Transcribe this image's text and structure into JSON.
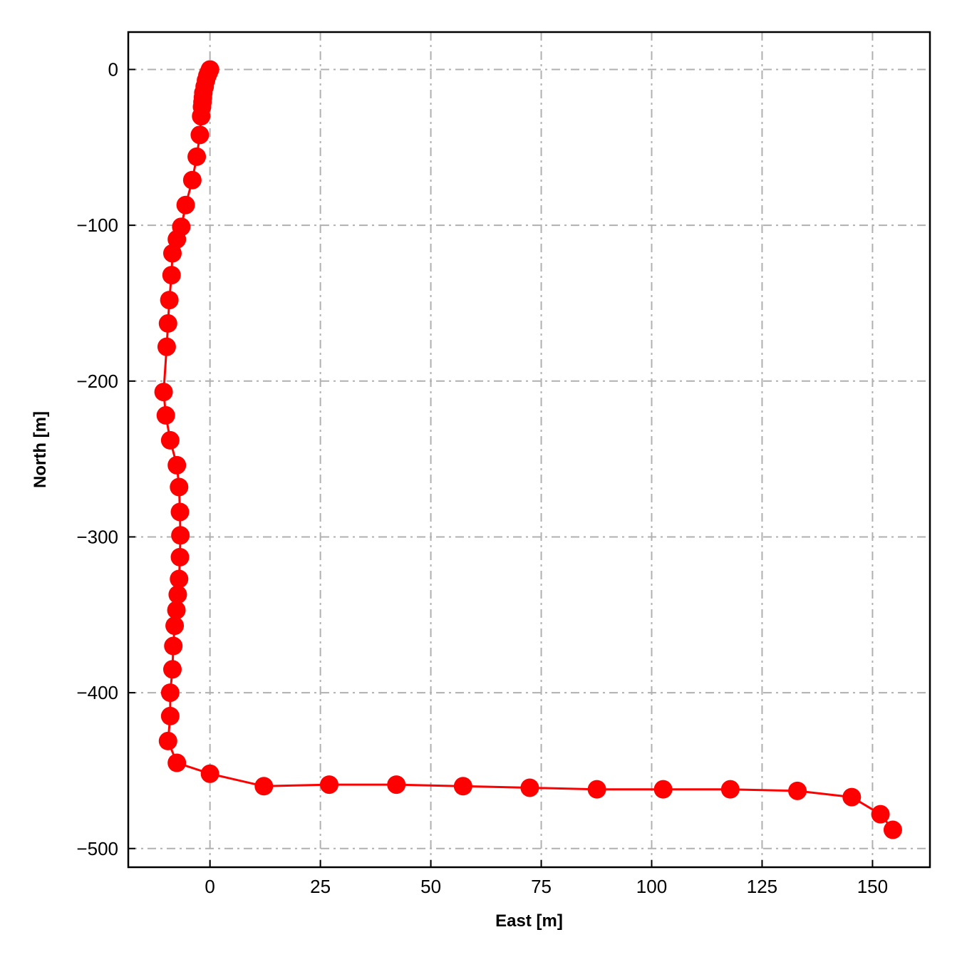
{
  "chart_data": {
    "type": "line",
    "title": "",
    "xlabel": "East [m]",
    "ylabel": "North [m]",
    "xlim": [
      -18.5,
      163
    ],
    "ylim": [
      -512,
      24
    ],
    "xticks": [
      0,
      25,
      50,
      75,
      100,
      125,
      150
    ],
    "yticks": [
      0,
      -100,
      -200,
      -300,
      -400,
      -500
    ],
    "xtick_labels": [
      "0",
      "25",
      "50",
      "75",
      "100",
      "125",
      "150"
    ],
    "ytick_labels": [
      "0",
      "−100",
      "−200",
      "−300",
      "−400",
      "−500"
    ],
    "grid": true,
    "ticks_direction": "in",
    "series": [
      {
        "color": "#ff0000",
        "marker": "circle",
        "x": [
          0,
          -0.3,
          -0.6,
          -0.9,
          -1.2,
          -1.5,
          -1.6,
          -1.7,
          -1.8,
          -2.0,
          -2.3,
          -3.0,
          -4.0,
          -5.5,
          -6.5,
          -7.5,
          -8.5,
          -8.7,
          -9.2,
          -9.5,
          -9.8,
          -10.5,
          -10.0,
          -9.0,
          -7.5,
          -7.0,
          -6.8,
          -6.7,
          -6.8,
          -7.0,
          -7.3,
          -7.6,
          -8.0,
          -8.3,
          -8.5,
          -9.0,
          -9.0,
          -9.5,
          -7.5,
          0,
          12.2,
          27.0,
          42.2,
          57.3,
          72.4,
          87.6,
          102.6,
          117.8,
          133.0,
          145.3,
          151.8,
          154.6
        ],
        "y": [
          0,
          -2,
          -4,
          -7,
          -11,
          -15,
          -18,
          -21,
          -24,
          -30,
          -42,
          -56,
          -71,
          -87,
          -101,
          -109,
          -118,
          -132,
          -148,
          -163,
          -178,
          -207,
          -222,
          -238,
          -254,
          -268,
          -284,
          -299,
          -313,
          -327,
          -337,
          -347,
          -357,
          -370,
          -385,
          -400,
          -415,
          -431,
          -445,
          -452,
          -460,
          -459,
          -459,
          -460,
          -461,
          -462,
          -462,
          -462,
          -463,
          -467,
          -478,
          -488
        ]
      }
    ]
  }
}
